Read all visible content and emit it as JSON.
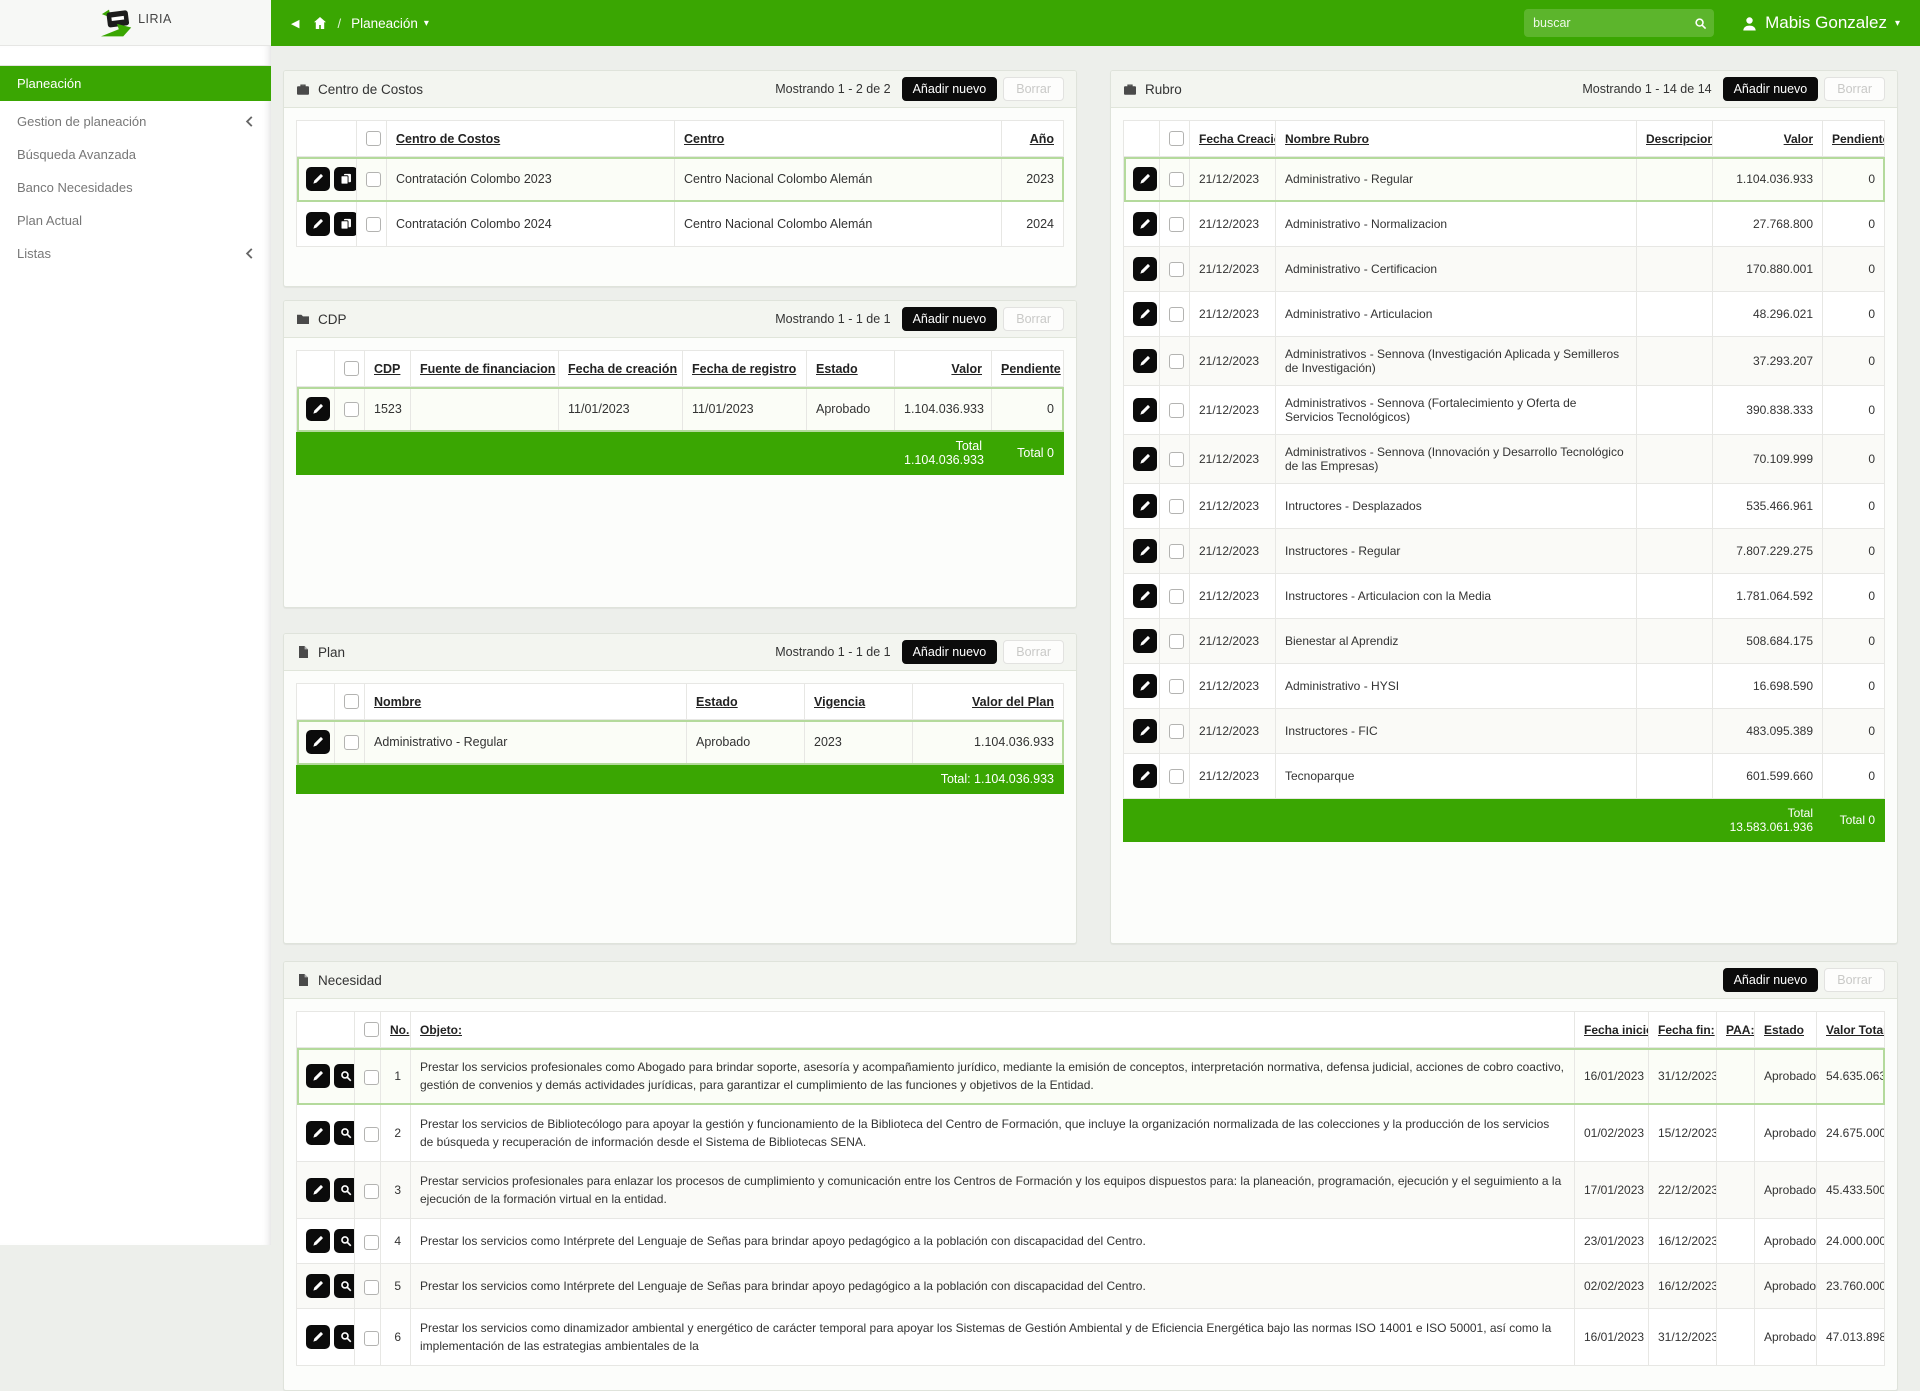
{
  "brand": {
    "name": "LIRIA"
  },
  "topbar": {
    "breadcrumb": "Planeación",
    "search_placeholder": "buscar",
    "user_name": "Mabis Gonzalez"
  },
  "sidebar": {
    "items": [
      {
        "label": "Planeación",
        "active": true,
        "chevron": false
      },
      {
        "label": "Gestion de planeación",
        "active": false,
        "chevron": true
      },
      {
        "label": "Búsqueda Avanzada",
        "active": false,
        "chevron": false
      },
      {
        "label": "Banco Necesidades",
        "active": false,
        "chevron": false
      },
      {
        "label": "Plan Actual",
        "active": false,
        "chevron": false
      },
      {
        "label": "Listas",
        "active": false,
        "chevron": true
      }
    ]
  },
  "colors": {
    "accent_green": "#3aa602",
    "light_green_search": "#5cb52c",
    "button_black": "#0b0b0b",
    "selected_row_border": "#b4da9c"
  },
  "panels": {
    "centro_costos": {
      "icon": "briefcase-icon",
      "title": "Centro de Costos",
      "showing": "Mostrando 1 - 2 de 2",
      "add_label": "Añadir nuevo",
      "delete_label": "Borrar",
      "columns": [
        {
          "label": "Centro de Costos",
          "align": "left"
        },
        {
          "label": "Centro",
          "align": "left"
        },
        {
          "label": "Año",
          "align": "right"
        }
      ],
      "rows": [
        {
          "selected": true,
          "actions": [
            "edit",
            "copy"
          ],
          "cells": [
            "Contratación Colombo 2023",
            "Centro Nacional Colombo Alemán",
            "2023"
          ]
        },
        {
          "selected": false,
          "actions": [
            "edit",
            "copy"
          ],
          "cells": [
            "Contratación Colombo 2024",
            "Centro Nacional Colombo Alemán",
            "2024"
          ]
        }
      ]
    },
    "cdp": {
      "icon": "folder-icon",
      "title": "CDP",
      "showing": "Mostrando 1 - 1 de 1",
      "add_label": "Añadir nuevo",
      "delete_label": "Borrar",
      "columns": [
        {
          "label": "CDP",
          "align": "left"
        },
        {
          "label": "Fuente de financiacion",
          "align": "left"
        },
        {
          "label": "Fecha de creación",
          "align": "left"
        },
        {
          "label": "Fecha de registro",
          "align": "left"
        },
        {
          "label": "Estado",
          "align": "left"
        },
        {
          "label": "Valor",
          "align": "right"
        },
        {
          "label": "Pendiente",
          "align": "right"
        }
      ],
      "rows": [
        {
          "selected": true,
          "actions": [
            "edit"
          ],
          "cells": [
            "1523",
            "",
            "11/01/2023",
            "11/01/2023",
            "Aprobado",
            "1.104.036.933",
            "0"
          ]
        }
      ],
      "totals": [
        "",
        "",
        "",
        "",
        "",
        "Total 1.104.036.933",
        "Total 0"
      ]
    },
    "plan": {
      "icon": "file-icon",
      "title": "Plan",
      "showing": "Mostrando 1 - 1 de 1",
      "add_label": "Añadir nuevo",
      "delete_label": "Borrar",
      "columns": [
        {
          "label": "Nombre",
          "align": "left"
        },
        {
          "label": "Estado",
          "align": "left"
        },
        {
          "label": "Vigencia",
          "align": "left"
        },
        {
          "label": "Valor del Plan",
          "align": "right"
        }
      ],
      "rows": [
        {
          "selected": true,
          "actions": [
            "edit"
          ],
          "cells": [
            "Administrativo - Regular",
            "Aprobado",
            "2023",
            "1.104.036.933"
          ]
        }
      ],
      "totals": [
        "",
        "",
        "",
        "Total: 1.104.036.933"
      ]
    },
    "rubro": {
      "icon": "briefcase-icon",
      "title": "Rubro",
      "showing": "Mostrando 1 - 14 de 14",
      "add_label": "Añadir nuevo",
      "delete_label": "Borrar",
      "columns": [
        {
          "label": "Fecha Creacion",
          "align": "left"
        },
        {
          "label": "Nombre Rubro",
          "align": "left"
        },
        {
          "label": "Descripcion",
          "align": "left"
        },
        {
          "label": "Valor",
          "align": "right"
        },
        {
          "label": "Pendiente",
          "align": "right"
        }
      ],
      "rows": [
        {
          "selected": true,
          "actions": [
            "edit"
          ],
          "cells": [
            "21/12/2023",
            "Administrativo - Regular",
            "",
            "1.104.036.933",
            "0"
          ]
        },
        {
          "selected": false,
          "actions": [
            "edit"
          ],
          "cells": [
            "21/12/2023",
            "Administrativo - Normalizacion",
            "",
            "27.768.800",
            "0"
          ]
        },
        {
          "selected": false,
          "actions": [
            "edit"
          ],
          "cells": [
            "21/12/2023",
            "Administrativo - Certificacion",
            "",
            "170.880.001",
            "0"
          ]
        },
        {
          "selected": false,
          "actions": [
            "edit"
          ],
          "cells": [
            "21/12/2023",
            "Administrativo - Articulacion",
            "",
            "48.296.021",
            "0"
          ]
        },
        {
          "selected": false,
          "actions": [
            "edit"
          ],
          "cells": [
            "21/12/2023",
            "Administrativos - Sennova (Investigación Aplicada y Semilleros de Investigación)",
            "",
            "37.293.207",
            "0"
          ]
        },
        {
          "selected": false,
          "actions": [
            "edit"
          ],
          "cells": [
            "21/12/2023",
            "Administrativos - Sennova (Fortalecimiento y Oferta de Servicios Tecnológicos)",
            "",
            "390.838.333",
            "0"
          ]
        },
        {
          "selected": false,
          "actions": [
            "edit"
          ],
          "cells": [
            "21/12/2023",
            "Administrativos - Sennova (Innovación y Desarrollo Tecnológico de las Empresas)",
            "",
            "70.109.999",
            "0"
          ]
        },
        {
          "selected": false,
          "actions": [
            "edit"
          ],
          "cells": [
            "21/12/2023",
            "Intructores - Desplazados",
            "",
            "535.466.961",
            "0"
          ]
        },
        {
          "selected": false,
          "actions": [
            "edit"
          ],
          "cells": [
            "21/12/2023",
            "Instructores - Regular",
            "",
            "7.807.229.275",
            "0"
          ]
        },
        {
          "selected": false,
          "actions": [
            "edit"
          ],
          "cells": [
            "21/12/2023",
            "Instructores - Articulacion con la Media",
            "",
            "1.781.064.592",
            "0"
          ]
        },
        {
          "selected": false,
          "actions": [
            "edit"
          ],
          "cells": [
            "21/12/2023",
            "Bienestar al Aprendiz",
            "",
            "508.684.175",
            "0"
          ]
        },
        {
          "selected": false,
          "actions": [
            "edit"
          ],
          "cells": [
            "21/12/2023",
            "Administrativo - HYSI",
            "",
            "16.698.590",
            "0"
          ]
        },
        {
          "selected": false,
          "actions": [
            "edit"
          ],
          "cells": [
            "21/12/2023",
            "Instructores - FIC",
            "",
            "483.095.389",
            "0"
          ]
        },
        {
          "selected": false,
          "actions": [
            "edit"
          ],
          "cells": [
            "21/12/2023",
            "Tecnoparque",
            "",
            "601.599.660",
            "0"
          ]
        }
      ],
      "totals": [
        "",
        "",
        "",
        "Total 13.583.061.936",
        "Total 0"
      ]
    },
    "necesidad": {
      "icon": "file-icon",
      "title": "Necesidad",
      "add_label": "Añadir nuevo",
      "delete_label": "Borrar",
      "columns": [
        {
          "label": "No.",
          "align": "right"
        },
        {
          "label": "Objeto:",
          "align": "left"
        },
        {
          "label": "Fecha inicio:",
          "align": "left"
        },
        {
          "label": "Fecha fin:",
          "align": "left"
        },
        {
          "label": "PAA:",
          "align": "left"
        },
        {
          "label": "Estado",
          "align": "left"
        },
        {
          "label": "Valor Total:",
          "align": "right"
        }
      ],
      "rows": [
        {
          "selected": true,
          "actions": [
            "edit",
            "search"
          ],
          "cells": [
            "1",
            "Prestar los servicios profesionales como Abogado para brindar soporte, asesoría y acompañamiento jurídico, mediante la emisión de conceptos, interpretación normativa, defensa judicial, acciones de cobro coactivo, gestión de convenios y demás actividades jurídicas, para garantizar el cumplimiento de las funciones y objetivos de la Entidad.",
            "16/01/2023",
            "31/12/2023",
            "",
            "Aprobado",
            "54.635.063"
          ]
        },
        {
          "selected": false,
          "actions": [
            "edit",
            "search"
          ],
          "cells": [
            "2",
            "Prestar los servicios de Bibliotecólogo para apoyar la gestión y funcionamiento de la Biblioteca del Centro de Formación, que incluye la organización normalizada de las colecciones y la producción de los servicios de búsqueda y recuperación de información desde el Sistema de Bibliotecas SENA.",
            "01/02/2023",
            "15/12/2023",
            "",
            "Aprobado",
            "24.675.000"
          ]
        },
        {
          "selected": false,
          "actions": [
            "edit",
            "search"
          ],
          "cells": [
            "3",
            "Prestar servicios profesionales para enlazar los procesos de cumplimiento y comunicación entre los Centros de Formación y los equipos dispuestos para: la planeación, programación, ejecución y el seguimiento a la ejecución de la formación virtual en la entidad.",
            "17/01/2023",
            "22/12/2023",
            "",
            "Aprobado",
            "45.433.500"
          ]
        },
        {
          "selected": false,
          "actions": [
            "edit",
            "search"
          ],
          "cells": [
            "4",
            "Prestar los servicios como Intérprete del Lenguaje de Señas para brindar apoyo pedagógico a la población con discapacidad del Centro.",
            "23/01/2023",
            "16/12/2023",
            "",
            "Aprobado",
            "24.000.000"
          ]
        },
        {
          "selected": false,
          "actions": [
            "edit",
            "search"
          ],
          "cells": [
            "5",
            "Prestar los servicios como Intérprete del Lenguaje de Señas para brindar apoyo pedagógico a la población con discapacidad del Centro.",
            "02/02/2023",
            "16/12/2023",
            "",
            "Aprobado",
            "23.760.000"
          ]
        },
        {
          "selected": false,
          "actions": [
            "edit",
            "search"
          ],
          "cells": [
            "6",
            "Prestar los servicios como dinamizador ambiental y energético de carácter temporal para apoyar los Sistemas de Gestión Ambiental y de Eficiencia Energética bajo las normas ISO 14001 e ISO 50001, así como la implementación de las estrategias ambientales de la",
            "16/01/2023",
            "31/12/2023",
            "",
            "Aprobado",
            "47.013.898"
          ]
        }
      ]
    }
  }
}
